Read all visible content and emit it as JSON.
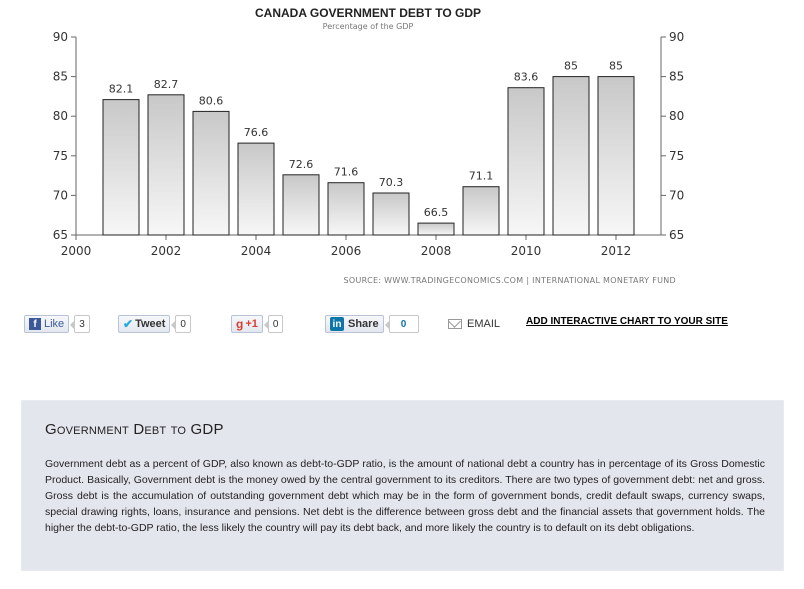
{
  "chart_data": {
    "type": "bar",
    "title": "CANADA GOVERNMENT DEBT TO GDP",
    "subtitle": "Percentage of the GDP",
    "x": [
      2001,
      2002,
      2003,
      2004,
      2005,
      2006,
      2007,
      2008,
      2009,
      2010,
      2011,
      2012
    ],
    "values": [
      82.1,
      82.7,
      80.6,
      76.6,
      72.6,
      71.6,
      70.3,
      66.5,
      71.1,
      83.6,
      85,
      85
    ],
    "data_labels": [
      "82.1",
      "82.7",
      "80.6",
      "76.6",
      "72.6",
      "71.6",
      "70.3",
      "66.5",
      "71.1",
      "83.6",
      "85",
      "85"
    ],
    "xlim": [
      2000,
      2013
    ],
    "ylim": [
      65,
      90
    ],
    "x_ticks": [
      "2000",
      "2002",
      "2004",
      "2006",
      "2008",
      "2010",
      "2012"
    ],
    "x_tick_values": [
      2000,
      2002,
      2004,
      2006,
      2008,
      2010,
      2012
    ],
    "y_ticks": [
      "65",
      "70",
      "75",
      "80",
      "85",
      "90"
    ],
    "y_tick_values": [
      65,
      70,
      75,
      80,
      85,
      90
    ],
    "grid": false,
    "legend": "none",
    "source": "SOURCE: WWW.TRADINGECONOMICS.COM  |  INTERNATIONAL MONETARY FUND",
    "colors": {
      "bar_top": "#c8c8c8",
      "bar_bottom": "#f7f7f7",
      "bar_stroke": "#222222"
    }
  },
  "social": {
    "like_label": "Like",
    "like_count": "3",
    "tweet_label": "Tweet",
    "tweet_count": "0",
    "gplus_label": "+1",
    "gplus_count": "0",
    "share_label": "Share",
    "share_count": "0",
    "email_label": "EMAIL",
    "add_chart_label": "ADD INTERACTIVE CHART TO YOUR SITE"
  },
  "info": {
    "title": "Government Debt to GDP",
    "text": "Government debt as a percent of GDP, also known as debt-to-GDP ratio, is the amount of national debt a country has in percentage of its Gross Domestic Product. Basically, Government debt is the money owed by the central government to its creditors. There are two types of government debt: net and gross. Gross debt is the accumulation of outstanding government debt which may be in the form of government bonds, credit default swaps, currency swaps, special drawing rights, loans, insurance and pensions. Net debt is the difference between gross debt and the financial assets that government holds. The higher the debt-to-GDP ratio, the less likely the country will pay its debt back, and more likely the country is to default on its debt obligations."
  }
}
